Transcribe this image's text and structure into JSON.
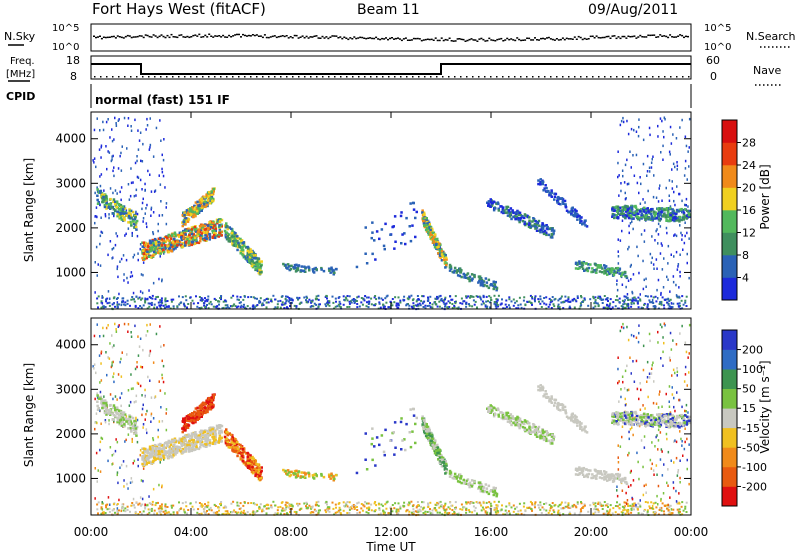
{
  "header": {
    "station": "Fort Hays West (fitACF)",
    "beam": "Beam 11",
    "date": "09/Aug/2011"
  },
  "top_panel": {
    "left_label": "N.Sky",
    "left_ticks": [
      "10^5",
      "10^0"
    ],
    "right_ticks": [
      "10^5",
      "10^0"
    ],
    "right_label": "N.Search"
  },
  "freq_panel": {
    "left_label_1": "Freq.",
    "left_label_2": "[MHz]",
    "left_ticks": [
      "18",
      "8"
    ],
    "right_ticks": [
      "60",
      "0"
    ],
    "right_label": "Nave"
  },
  "cpid_panel": {
    "label": "CPID",
    "text": "normal (fast) 151 IF"
  },
  "chart_data": [
    {
      "type": "heatmap",
      "name": "power",
      "ylabel": "Slant Range [km]",
      "yticks": [
        "1000",
        "2000",
        "3000",
        "4000"
      ],
      "ylim": [
        180,
        4600
      ],
      "colorbar_label": "Power [dB]",
      "colorbar_ticks": [
        "4",
        "8",
        "12",
        "16",
        "20",
        "24",
        "28"
      ],
      "colors": [
        "#1c2adb",
        "#2a62b6",
        "#3f8f5e",
        "#52b85c",
        "#f0d020",
        "#f08a1a",
        "#e83c0f",
        "#d80f0f"
      ],
      "colorbar_range": [
        0,
        32
      ]
    },
    {
      "type": "heatmap",
      "name": "velocity",
      "ylabel": "Slant Range [km]",
      "yticks": [
        "1000",
        "2000",
        "3000",
        "4000"
      ],
      "ylim": [
        180,
        4600
      ],
      "colorbar_label": "Velocity [m s⁻¹]",
      "colorbar_ticks": [
        "200",
        "100",
        "50",
        "15",
        "-15",
        "-50",
        "-100",
        "-200"
      ],
      "colors": [
        "#2a38c8",
        "#2f6cc4",
        "#3d9450",
        "#79c240",
        "#c8c8c0",
        "#f0c020",
        "#f08a1a",
        "#e85a10",
        "#e01010"
      ],
      "xlabel": "Time UT",
      "xticks": [
        "00:00",
        "04:00",
        "08:00",
        "12:00",
        "16:00",
        "20:00",
        "00:00"
      ]
    }
  ]
}
